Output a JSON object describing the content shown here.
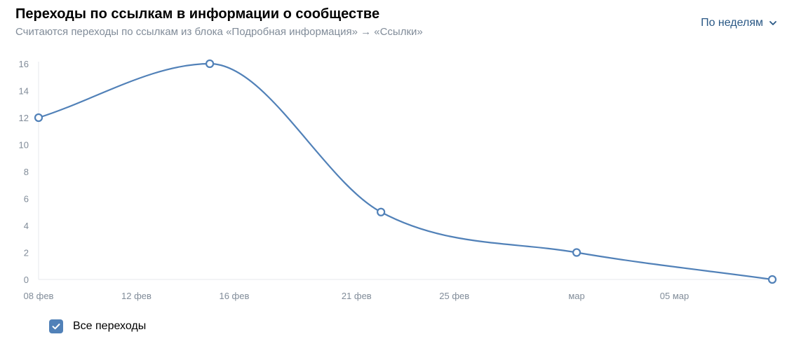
{
  "header": {
    "title": "Переходы по ссылкам в информации о сообществе",
    "subtitle": "Считаются переходы по ссылкам из блока «Подробная информация» → «Ссылки»"
  },
  "period_selector": {
    "label": "По неделям",
    "icon": "chevron-down-icon"
  },
  "colors": {
    "series": "#5181b8",
    "axis_text": "#818c99",
    "accent": "#2a5885",
    "grid": "#e7e8ec"
  },
  "chart_data": {
    "type": "line",
    "title": "",
    "xlabel": "",
    "ylabel": "",
    "ylim": [
      0,
      16
    ],
    "yticks": [
      0,
      2,
      4,
      6,
      8,
      10,
      12,
      14,
      16
    ],
    "xlim": [
      "2020-02-08",
      "2020-03-09"
    ],
    "xticks": [
      {
        "date": "2020-02-08",
        "label": "08 фев"
      },
      {
        "date": "2020-02-12",
        "label": "12 фев"
      },
      {
        "date": "2020-02-16",
        "label": "16 фев"
      },
      {
        "date": "2020-02-21",
        "label": "21 фев"
      },
      {
        "date": "2020-02-25",
        "label": "25 фев"
      },
      {
        "date": "2020-03-01",
        "label": "мар"
      },
      {
        "date": "2020-03-05",
        "label": "05 мар"
      }
    ],
    "series": [
      {
        "name": "Все переходы",
        "points": [
          {
            "x": "2020-02-08",
            "y": 12
          },
          {
            "x": "2020-02-15",
            "y": 16
          },
          {
            "x": "2020-02-22",
            "y": 5
          },
          {
            "x": "2020-03-01",
            "y": 2
          },
          {
            "x": "2020-03-09",
            "y": 0
          }
        ]
      }
    ],
    "legend": {
      "position": "bottom-left",
      "items": [
        {
          "label": "Все переходы",
          "checked": true
        }
      ]
    },
    "grid": false
  }
}
